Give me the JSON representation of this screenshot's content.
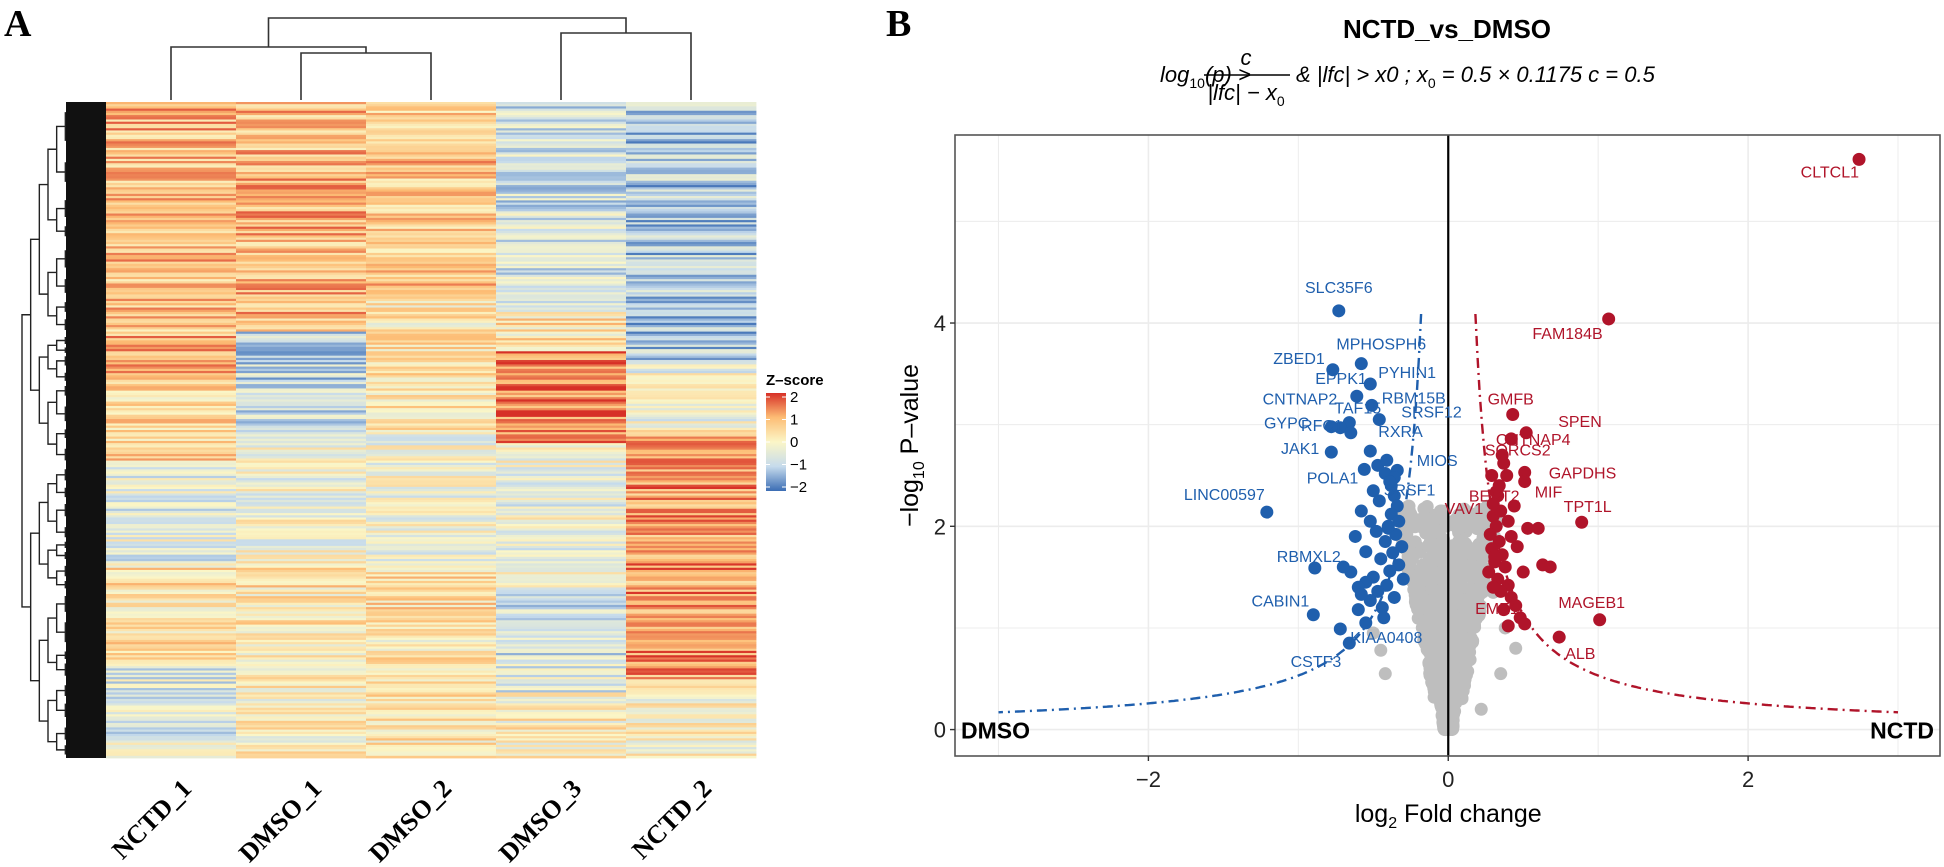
{
  "figure": {
    "panel_a_letter": "A",
    "panel_b_letter": "B"
  },
  "chart_data": [
    {
      "type": "heatmap",
      "title": "",
      "columns": [
        "NCTD_1",
        "DMSO_1",
        "DMSO_2",
        "DMSO_3",
        "NCTD_2"
      ],
      "row_count": 300,
      "row_dendrogram": true,
      "column_dendrogram": {
        "merges": [
          {
            "left": "DMSO_1",
            "right": "DMSO_2",
            "order": 1
          },
          {
            "left": "NCTD_1",
            "right": "DMSO_1+DMSO_2",
            "order": 2
          },
          {
            "left": "DMSO_3",
            "right": "NCTD_2",
            "order": 3
          },
          {
            "left": "NCTD_1+DMSO_1+DMSO_2",
            "right": "DMSO_3+NCTD_2",
            "order": 4
          }
        ]
      },
      "legend": {
        "title": "Z–score",
        "ticks": [
          "2",
          "1",
          "0",
          "−1",
          "−2"
        ],
        "range": [
          -2,
          2
        ],
        "colors": {
          "low": "#3b6db4",
          "mid_low": "#c6dbec",
          "mid": "#fbf6c7",
          "mid_high": "#fdbd75",
          "high": "#d73027"
        }
      },
      "color_bands_description": [
        {
          "column": "NCTD_1",
          "pattern": "mostly warm (orange/yellow) top half; mixed blue/yellow bottom half"
        },
        {
          "column": "DMSO_1",
          "pattern": "warm upper third; blue in middle section; mixed lower"
        },
        {
          "column": "DMSO_2",
          "pattern": "warm/yellow top; yellow middle; mixed bottom"
        },
        {
          "column": "DMSO_3",
          "pattern": "blue upper third; strong red middle block; blue/yellow lower"
        },
        {
          "column": "NCTD_2",
          "pattern": "blue/light top half; strong red lower half"
        }
      ]
    },
    {
      "type": "scatter",
      "title": "NCTD_vs_DMSO",
      "subtitle": {
        "lhs": "log",
        "lhs_sub": "10",
        "lhs_rest": "(p) >",
        "frac_num": "c",
        "frac_den": "|lfc| − x",
        "frac_den_sub": "0",
        "rest": "& |lfc| > x0 ; x",
        "rest_sub": "0",
        "rest2": " = 0.5 × 0.1175 c = 0.5"
      },
      "xlabel": "log₂ Fold change",
      "xlabel_main": "log",
      "xlabel_sub": "2",
      "xlabel_rest": " Fold change",
      "ylabel_prefix": "−log",
      "ylabel_sub": "10",
      "ylabel_rest": " P–value",
      "xlim": [
        -3.29,
        3.28
      ],
      "ylim": [
        -0.26,
        5.85
      ],
      "xticks": [
        -2,
        0,
        2
      ],
      "xtick_labels": [
        "−2",
        "0",
        "2"
      ],
      "yticks": [
        0,
        2,
        4
      ],
      "ytick_labels": [
        "0",
        "2",
        "4"
      ],
      "grid": true,
      "corner_labels": {
        "left": "DMSO",
        "right": "NCTD"
      },
      "threshold": {
        "x0": 0.05875,
        "c": 0.5
      },
      "colors": {
        "down": "#1f5fad",
        "up": "#b0142a",
        "ns": "#bebebe",
        "threshold_left": "#1f5fad",
        "threshold_right": "#b0142a"
      },
      "down_genes": [
        {
          "name": "SLC35F6",
          "x": -0.73,
          "y": 4.12
        },
        {
          "name": "MPHOSPH6",
          "x": -0.58,
          "y": 3.6
        },
        {
          "name": "ZBED1",
          "x": -0.77,
          "y": 3.54
        },
        {
          "name": "PYHIN1",
          "x": -0.52,
          "y": 3.4
        },
        {
          "name": "EPPK1",
          "x": -0.61,
          "y": 3.28
        },
        {
          "name": "RBM15B",
          "x": -0.51,
          "y": 3.19
        },
        {
          "name": "CNTNAP2",
          "x": -0.66,
          "y": 3.02
        },
        {
          "name": "SRSF12",
          "x": -0.46,
          "y": 3.05
        },
        {
          "name": "TAF15",
          "x": -0.72,
          "y": 2.97
        },
        {
          "name": "GYPC",
          "x": -0.78,
          "y": 2.98
        },
        {
          "name": "RFC1",
          "x": -0.65,
          "y": 2.92
        },
        {
          "name": "RXRA",
          "x": -0.52,
          "y": 2.74
        },
        {
          "name": "MIOS",
          "x": -0.41,
          "y": 2.65
        },
        {
          "name": "JAK1",
          "x": -0.78,
          "y": 2.73
        },
        {
          "name": "POLA1",
          "x": -0.56,
          "y": 2.56
        },
        {
          "name": "SRSF1",
          "x": -0.39,
          "y": 2.44
        },
        {
          "name": "LINC00597",
          "x": -1.21,
          "y": 2.14
        },
        {
          "name": "RBMXL2",
          "x": -0.89,
          "y": 1.59
        },
        {
          "name": "CABIN1",
          "x": -0.9,
          "y": 1.13
        },
        {
          "name": "KIAA0408",
          "x": -0.72,
          "y": 0.99
        },
        {
          "name": "CSTF3",
          "x": -0.66,
          "y": 0.85
        }
      ],
      "up_genes": [
        {
          "name": "CLTCL1",
          "x": 2.74,
          "y": 5.61
        },
        {
          "name": "FAM184B",
          "x": 1.07,
          "y": 4.04
        },
        {
          "name": "GMFB",
          "x": 0.43,
          "y": 3.1
        },
        {
          "name": "SPEN",
          "x": 0.52,
          "y": 2.92
        },
        {
          "name": "CNTNAP4",
          "x": 0.42,
          "y": 2.86
        },
        {
          "name": "SORCS2",
          "x": 0.37,
          "y": 2.62
        },
        {
          "name": "GAPDHS",
          "x": 0.51,
          "y": 2.53
        },
        {
          "name": "MIF",
          "x": 0.51,
          "y": 2.44
        },
        {
          "name": "BEST2",
          "x": 0.32,
          "y": 2.34
        },
        {
          "name": "VAV1",
          "x": 0.3,
          "y": 2.22
        },
        {
          "name": "TPT1L",
          "x": 0.89,
          "y": 2.04
        },
        {
          "name": "MAGEB1",
          "x": 1.01,
          "y": 1.08
        },
        {
          "name": "EME1",
          "x": 0.51,
          "y": 1.04
        },
        {
          "name": "ALB",
          "x": 0.74,
          "y": 0.91
        }
      ],
      "extra_down_points": [
        [
          -0.36,
          2.3
        ],
        [
          -0.34,
          2.2
        ],
        [
          -0.38,
          2.12
        ],
        [
          -0.33,
          2.05
        ],
        [
          -0.4,
          1.98
        ],
        [
          -0.35,
          1.92
        ],
        [
          -0.42,
          1.85
        ],
        [
          -0.31,
          1.8
        ],
        [
          -0.37,
          1.74
        ],
        [
          -0.45,
          1.68
        ],
        [
          -0.33,
          1.62
        ],
        [
          -0.39,
          1.56
        ],
        [
          -0.5,
          1.5
        ],
        [
          -0.3,
          1.48
        ],
        [
          -0.41,
          1.42
        ],
        [
          -0.55,
          1.45
        ],
        [
          -0.47,
          1.36
        ],
        [
          -0.6,
          1.4
        ],
        [
          -0.36,
          1.3
        ],
        [
          -0.52,
          1.27
        ],
        [
          -0.44,
          1.2
        ],
        [
          -0.65,
          1.55
        ],
        [
          -0.58,
          1.33
        ],
        [
          -0.7,
          1.6
        ],
        [
          -0.48,
          1.95
        ],
        [
          -0.52,
          2.05
        ],
        [
          -0.58,
          2.15
        ],
        [
          -0.46,
          2.25
        ],
        [
          -0.62,
          1.9
        ],
        [
          -0.55,
          1.75
        ],
        [
          -0.38,
          2.4
        ],
        [
          -0.42,
          2.52
        ],
        [
          -0.47,
          2.6
        ],
        [
          -0.34,
          2.55
        ],
        [
          -0.5,
          2.35
        ],
        [
          -0.43,
          1.1
        ],
        [
          -0.55,
          1.05
        ],
        [
          -0.6,
          1.18
        ],
        [
          -0.4,
          2.0
        ],
        [
          -0.36,
          2.48
        ]
      ],
      "extra_up_points": [
        [
          0.3,
          2.1
        ],
        [
          0.32,
          2.0
        ],
        [
          0.28,
          1.92
        ],
        [
          0.34,
          1.85
        ],
        [
          0.29,
          1.78
        ],
        [
          0.36,
          1.72
        ],
        [
          0.31,
          1.65
        ],
        [
          0.38,
          1.6
        ],
        [
          0.27,
          1.55
        ],
        [
          0.33,
          1.48
        ],
        [
          0.4,
          1.42
        ],
        [
          0.35,
          1.36
        ],
        [
          0.42,
          1.3
        ],
        [
          0.3,
          1.4
        ],
        [
          0.45,
          1.22
        ],
        [
          0.37,
          1.18
        ],
        [
          0.48,
          1.1
        ],
        [
          0.4,
          1.02
        ],
        [
          0.53,
          1.98
        ],
        [
          0.6,
          1.98
        ],
        [
          0.63,
          1.62
        ],
        [
          0.68,
          1.6
        ],
        [
          0.34,
          2.4
        ],
        [
          0.39,
          2.5
        ],
        [
          0.36,
          2.7
        ],
        [
          0.33,
          2.3
        ],
        [
          0.44,
          2.2
        ],
        [
          0.4,
          2.05
        ],
        [
          0.46,
          1.8
        ],
        [
          0.5,
          1.55
        ],
        [
          0.29,
          2.5
        ],
        [
          0.35,
          2.15
        ],
        [
          0.31,
          1.7
        ],
        [
          0.42,
          1.9
        ]
      ]
    }
  ]
}
